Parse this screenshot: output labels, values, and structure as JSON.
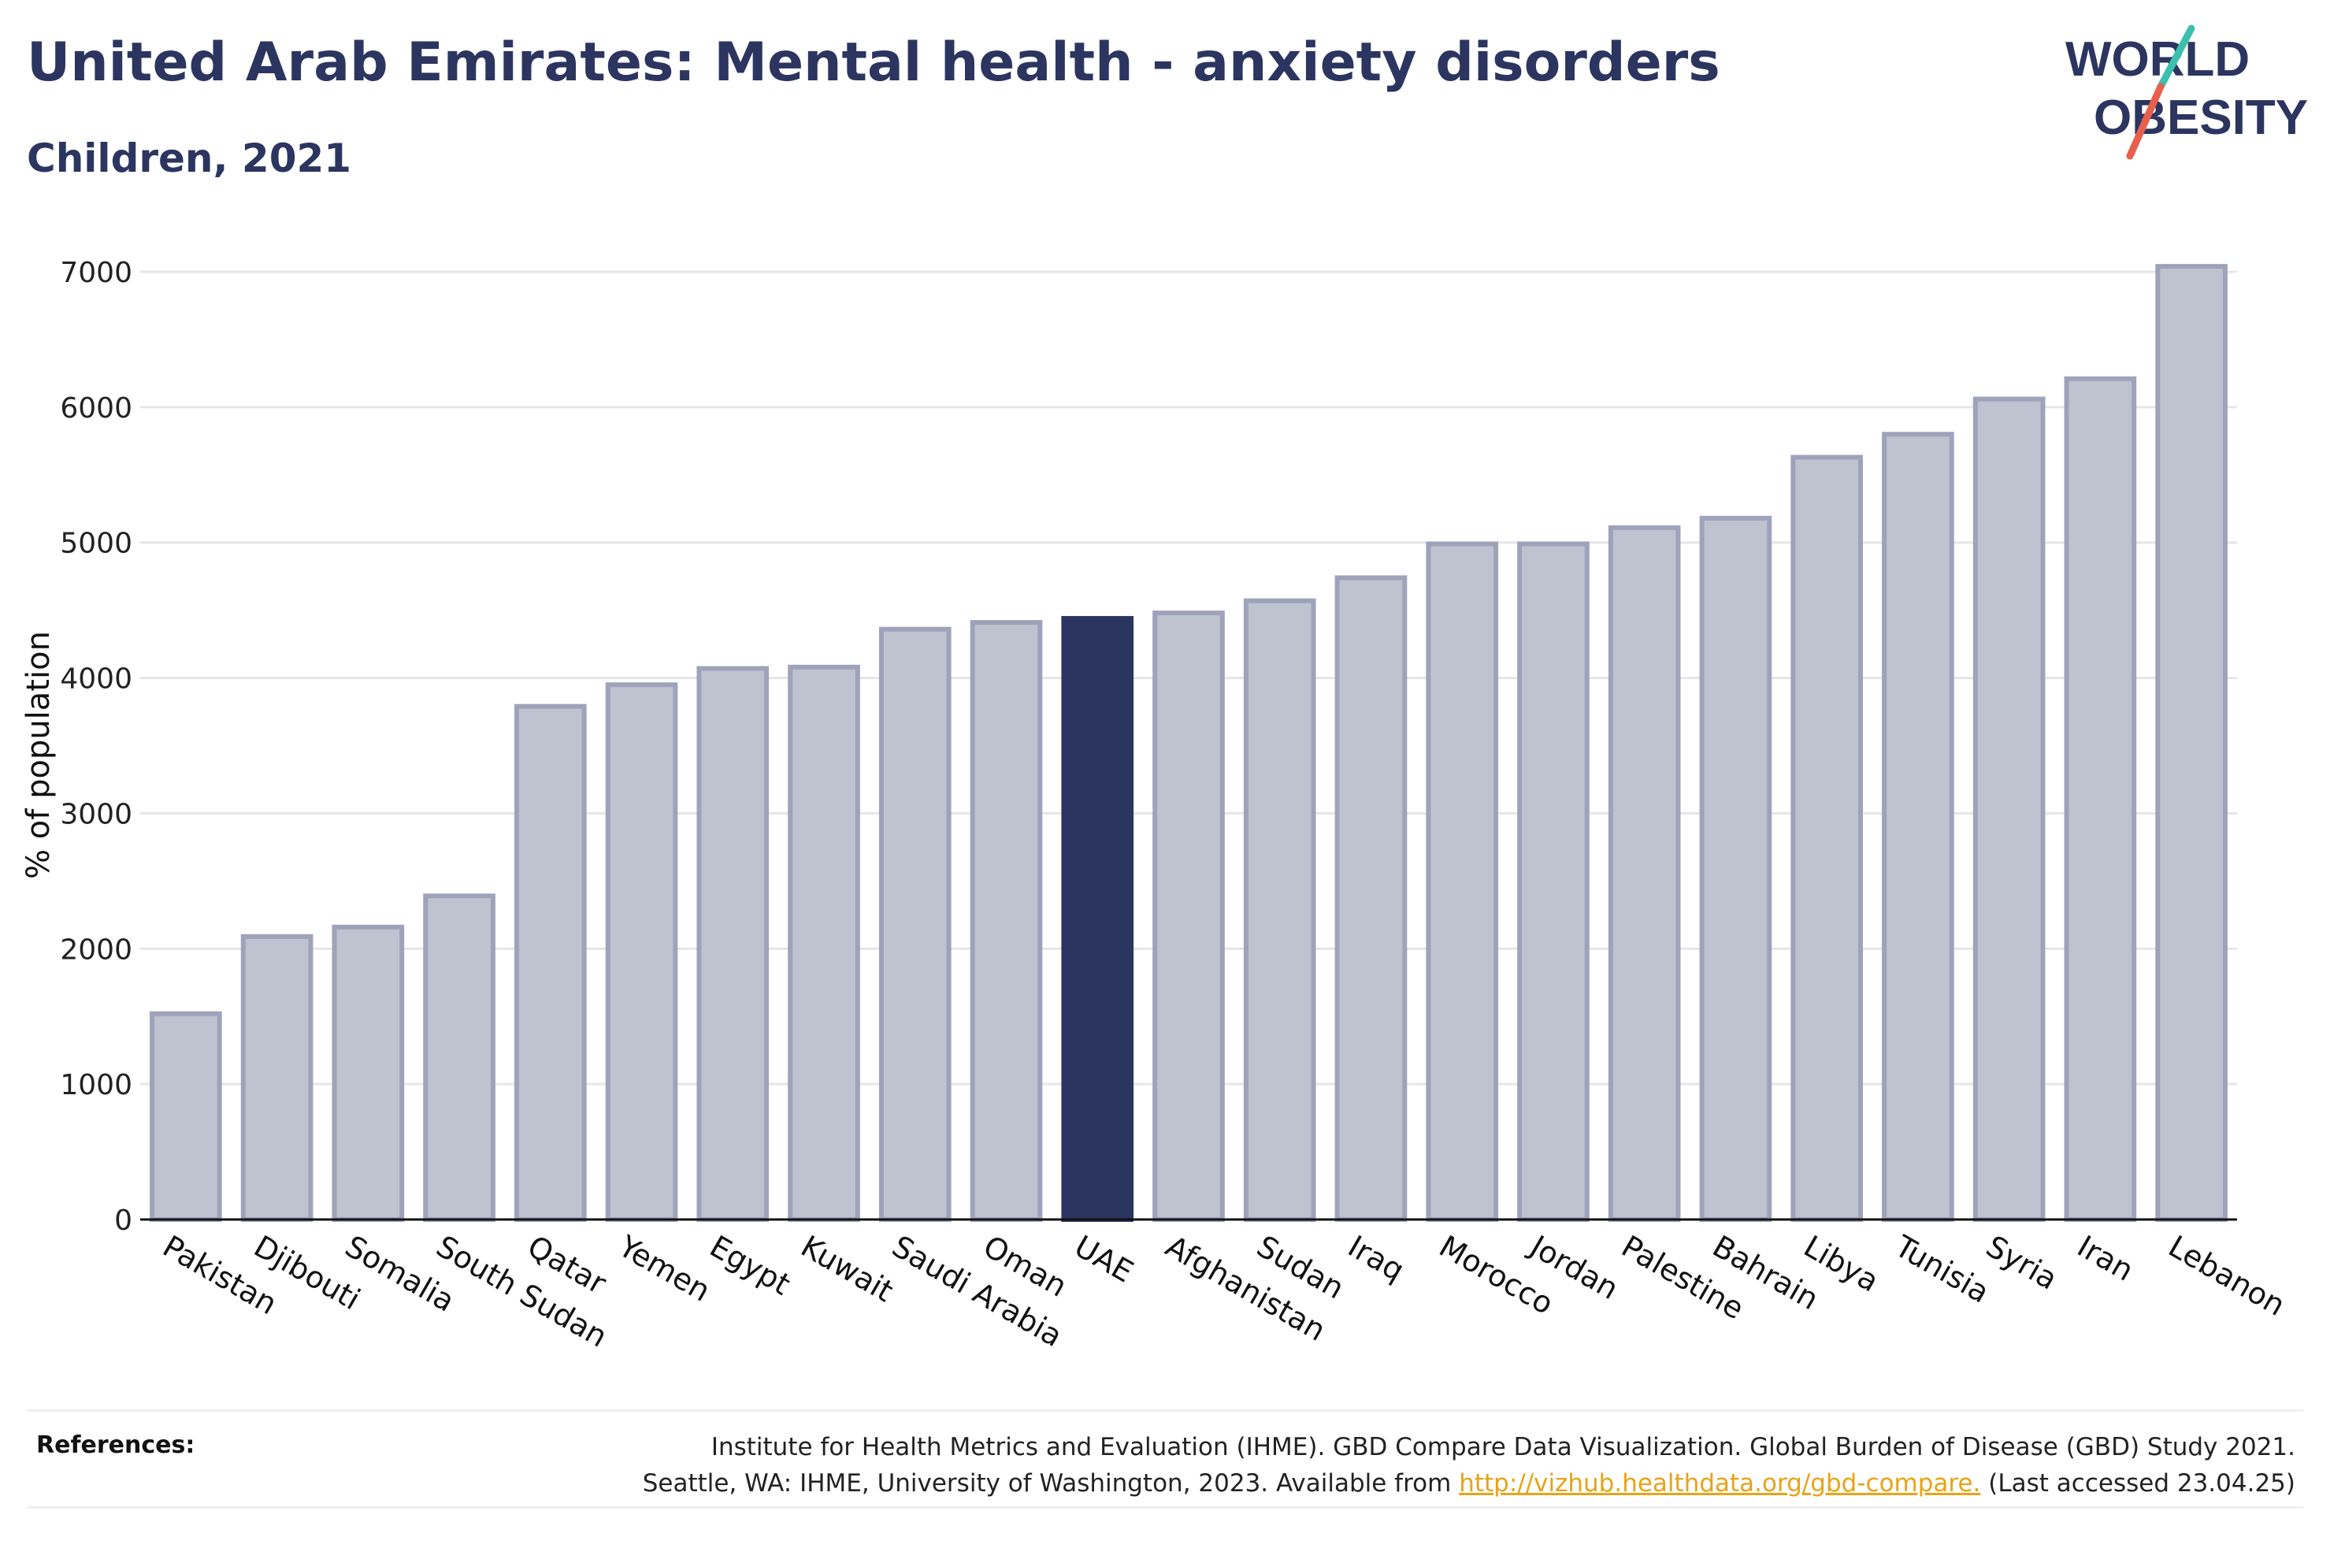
{
  "title": "United Arab Emirates: Mental health - anxiety disorders",
  "subtitle": "Children, 2021",
  "logo": {
    "line1": "WORLD",
    "line2": "OBESITY",
    "slash_colors": [
      "#3cbfae",
      "#e8604c"
    ]
  },
  "colors": {
    "highlight": "#2b3560",
    "bar_fill": "#bfc2cf",
    "bar_stroke": "#9ea3ba",
    "grid": "#e6e6e6",
    "text": "#2b3560",
    "link": "#e8a317"
  },
  "chart_data": {
    "type": "bar",
    "title": "",
    "xlabel": "",
    "ylabel": "% of population",
    "ylim": [
      0,
      7000
    ],
    "yticks": [
      "0",
      "1000",
      "2000",
      "3000",
      "4000",
      "5000",
      "6000",
      "7000"
    ],
    "grid": true,
    "highlight": "UAE",
    "categories": [
      "Pakistan",
      "Djibouti",
      "Somalia",
      "South Sudan",
      "Qatar",
      "Yemen",
      "Egypt",
      "Kuwait",
      "Saudi Arabia",
      "Oman",
      "UAE",
      "Afghanistan",
      "Sudan",
      "Iraq",
      "Morocco",
      "Jordan",
      "Palestine",
      "Bahrain",
      "Libya",
      "Tunisia",
      "Syria",
      "Iran",
      "Lebanon"
    ],
    "values": [
      1520,
      2090,
      2160,
      2390,
      3790,
      3950,
      4070,
      4080,
      4360,
      4410,
      4440,
      4480,
      4570,
      4740,
      4990,
      4990,
      5110,
      5180,
      5630,
      5800,
      6060,
      6210,
      7040
    ]
  },
  "references": {
    "label": "References:",
    "line1": "Institute for Health Metrics and Evaluation (IHME). GBD Compare Data Visualization. Global Burden of Disease (GBD) Study 2021.",
    "line2_prefix": "Seattle, WA: IHME, University of Washington, 2023. Available from ",
    "link_text": "http://vizhub.healthdata.org/gbd-compare.",
    "line2_suffix": " (Last accessed 23.04.25)"
  }
}
